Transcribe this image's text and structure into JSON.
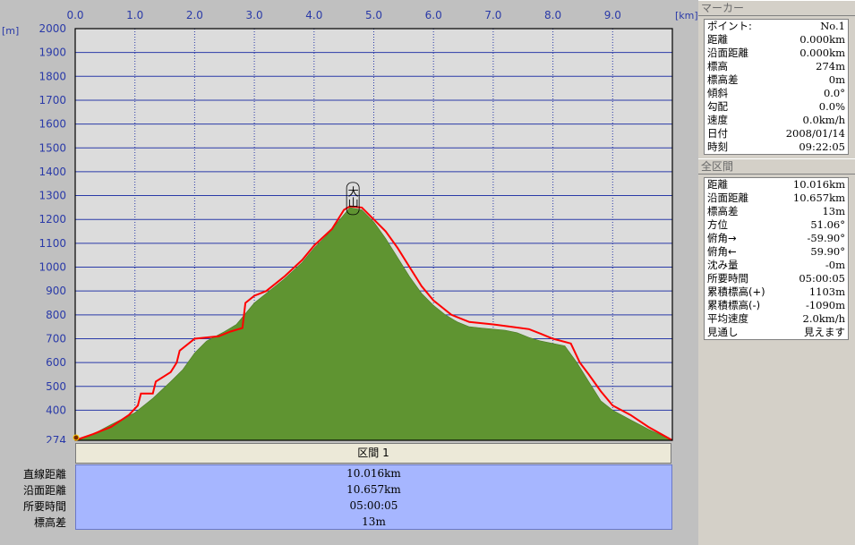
{
  "chart_data": {
    "type": "area",
    "x_unit": "[km]",
    "y_unit": "[m]",
    "xlim": [
      0,
      10
    ],
    "ylim": [
      274,
      2000
    ],
    "x_ticks": [
      "0.0",
      "1.0",
      "2.0",
      "3.0",
      "4.0",
      "5.0",
      "6.0",
      "7.0",
      "8.0",
      "9.0"
    ],
    "y_ticks": [
      "2000",
      "1900",
      "1800",
      "1700",
      "1600",
      "1500",
      "1400",
      "1300",
      "1200",
      "1100",
      "1000",
      "900",
      "800",
      "700",
      "600",
      "500",
      "400",
      "274"
    ],
    "annotation": {
      "text": "大山",
      "x": 4.65,
      "y": 1340
    },
    "colors": {
      "terrain": "#5f9431",
      "track": "#ff0000",
      "plot_bg": "#dcdcdc",
      "grid": "#2a3aa8"
    },
    "series": [
      {
        "values": [
          [
            0.0,
            274
          ],
          [
            0.3,
            300
          ],
          [
            0.6,
            340
          ],
          [
            1.0,
            390
          ],
          [
            1.3,
            450
          ],
          [
            1.6,
            520
          ],
          [
            1.8,
            570
          ],
          [
            2.0,
            640
          ],
          [
            2.2,
            690
          ],
          [
            2.5,
            730
          ],
          [
            2.7,
            760
          ],
          [
            2.8,
            790
          ],
          [
            3.0,
            850
          ],
          [
            3.2,
            890
          ],
          [
            3.5,
            950
          ],
          [
            3.8,
            1020
          ],
          [
            4.0,
            1080
          ],
          [
            4.2,
            1130
          ],
          [
            4.4,
            1190
          ],
          [
            4.6,
            1250
          ],
          [
            4.8,
            1240
          ],
          [
            5.0,
            1190
          ],
          [
            5.2,
            1120
          ],
          [
            5.4,
            1040
          ],
          [
            5.6,
            960
          ],
          [
            5.8,
            890
          ],
          [
            6.0,
            840
          ],
          [
            6.2,
            800
          ],
          [
            6.4,
            770
          ],
          [
            6.6,
            750
          ],
          [
            6.8,
            745
          ],
          [
            7.0,
            740
          ],
          [
            7.2,
            735
          ],
          [
            7.4,
            725
          ],
          [
            7.6,
            705
          ],
          [
            7.8,
            690
          ],
          [
            8.0,
            680
          ],
          [
            8.2,
            670
          ],
          [
            8.4,
            600
          ],
          [
            8.6,
            520
          ],
          [
            8.8,
            440
          ],
          [
            9.0,
            400
          ],
          [
            9.3,
            360
          ],
          [
            9.6,
            320
          ],
          [
            10.0,
            274
          ]
        ]
      },
      {
        "values": [
          [
            0.0,
            274
          ],
          [
            0.3,
            300
          ],
          [
            0.6,
            330
          ],
          [
            0.9,
            380
          ],
          [
            1.05,
            420
          ],
          [
            1.1,
            470
          ],
          [
            1.3,
            470
          ],
          [
            1.35,
            520
          ],
          [
            1.6,
            560
          ],
          [
            1.7,
            600
          ],
          [
            1.75,
            650
          ],
          [
            2.0,
            700
          ],
          [
            2.4,
            710
          ],
          [
            2.6,
            730
          ],
          [
            2.8,
            745
          ],
          [
            2.85,
            850
          ],
          [
            3.0,
            880
          ],
          [
            3.2,
            900
          ],
          [
            3.5,
            960
          ],
          [
            3.8,
            1030
          ],
          [
            4.0,
            1090
          ],
          [
            4.3,
            1160
          ],
          [
            4.5,
            1240
          ],
          [
            4.6,
            1255
          ],
          [
            4.8,
            1250
          ],
          [
            5.0,
            1200
          ],
          [
            5.2,
            1150
          ],
          [
            5.4,
            1080
          ],
          [
            5.6,
            1000
          ],
          [
            5.8,
            920
          ],
          [
            6.0,
            860
          ],
          [
            6.3,
            800
          ],
          [
            6.6,
            770
          ],
          [
            7.0,
            760
          ],
          [
            7.3,
            750
          ],
          [
            7.6,
            740
          ],
          [
            7.8,
            720
          ],
          [
            8.0,
            700
          ],
          [
            8.3,
            680
          ],
          [
            8.45,
            600
          ],
          [
            8.6,
            550
          ],
          [
            8.8,
            480
          ],
          [
            9.0,
            420
          ],
          [
            9.3,
            380
          ],
          [
            9.6,
            330
          ],
          [
            10.0,
            274
          ]
        ]
      }
    ]
  },
  "summary": {
    "header": "区間 1",
    "labels": [
      "直線距離",
      "沿面距離",
      "所要時間",
      "標高差"
    ],
    "values": [
      "10.016km",
      "10.657km",
      "05:00:05",
      "13m"
    ]
  },
  "marker_panel": {
    "title": "マーカー",
    "rows": [
      {
        "label": "ポイント:",
        "value": "No.1"
      },
      {
        "label": "距離",
        "value": "0.000km"
      },
      {
        "label": "沿面距離",
        "value": "0.000km"
      },
      {
        "label": "標高",
        "value": "274m"
      },
      {
        "label": "標高差",
        "value": "0m"
      },
      {
        "label": "傾斜",
        "value": "0.0°"
      },
      {
        "label": "勾配",
        "value": "0.0%"
      },
      {
        "label": "速度",
        "value": "0.0km/h"
      },
      {
        "label": "日付",
        "value": "2008/01/14"
      },
      {
        "label": "時刻",
        "value": "09:22:05"
      }
    ]
  },
  "total_panel": {
    "title": "全区間",
    "rows": [
      {
        "label": "距離",
        "value": "10.016km"
      },
      {
        "label": "沿面距離",
        "value": "10.657km"
      },
      {
        "label": "標高差",
        "value": "13m"
      },
      {
        "label": "方位",
        "value": "51.06°"
      },
      {
        "label": "俯角→",
        "value": "-59.90°"
      },
      {
        "label": "俯角←",
        "value": "59.90°"
      },
      {
        "label": "沈み量",
        "value": "-0m"
      },
      {
        "label": "所要時間",
        "value": "05:00:05"
      },
      {
        "label": "累積標高(+)",
        "value": "1103m"
      },
      {
        "label": "累積標高(-)",
        "value": "-1090m"
      },
      {
        "label": "平均速度",
        "value": "2.0km/h"
      },
      {
        "label": "見通し",
        "value": "見えます"
      }
    ]
  }
}
